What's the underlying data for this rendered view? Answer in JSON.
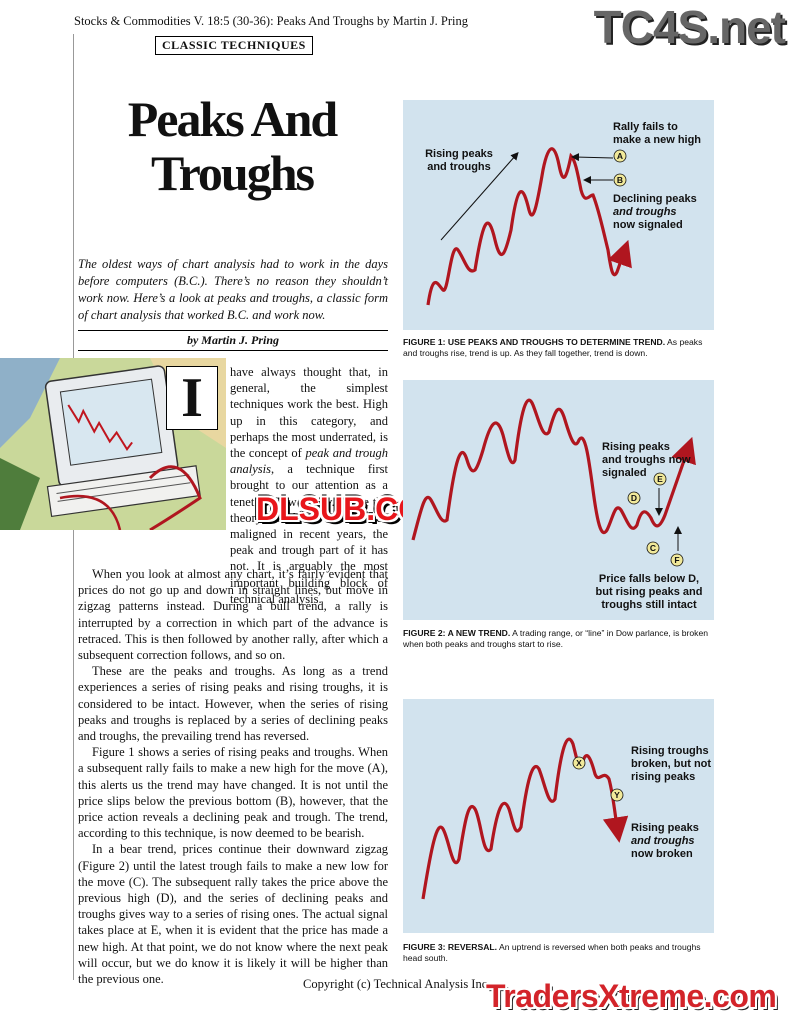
{
  "header": {
    "running_head": "Stocks & Commodities V. 18:5 (30-36): Peaks And Troughs by Martin J. Pring",
    "section": "CLASSIC TECHNIQUES"
  },
  "watermarks": {
    "top": "TC4S.net",
    "middle": "DLSUB.COM",
    "bottom": "TradersXtreme.com"
  },
  "article": {
    "title_line1": "Peaks And",
    "title_line2": "Troughs",
    "deck": "The oldest ways of chart analysis had to work in the days before computers (B.C.). There’s no reason they shouldn’t work now. Here’s a look at peaks and troughs, a classic form of chart analysis that worked B.C. and work now.",
    "byline": "by Martin J. Pring",
    "drop_cap": "I",
    "p1_lead": "have always thought that, in general, the simplest techniques work the best. High up in this category, and perhaps the most underrated, is the concept of ",
    "p1_em1": "peak and trough analysis",
    "p1_mid": ", a technique first brought to our attention as a tenet of Dow theory. While the theory itself has been much maligned in recent years, the peak and trough part of it has not. It is arguably the most important building block of technical analysis.",
    "p2": "When you look at almost any chart, it’s fairly evident that prices do not go up and down in straight lines, but move in zigzag patterns instead. During a bull trend, a rally is interrupted by a correction in which part of the advance is retraced. This is then followed by another rally, after which a subsequent correction follows, and so on.",
    "p3": "These are the peaks and troughs. As long as a trend experiences a series of rising peaks and rising troughs, it is considered to be intact. However, when the series of rising peaks and troughs is replaced by a series of declining peaks and troughs, the prevailing trend has reversed.",
    "p4": "Figure 1 shows a series of rising peaks and troughs. When a subsequent rally fails to make a new high for the move (A), this alerts us the trend may have changed. It is not until the price slips below the previous bottom (B), however, that the price action reveals a declining peak and trough. The trend, according to this technique, is now deemed to be bearish.",
    "p5": "In a bear trend, prices continue their downward zigzag (Figure 2) until the latest trough fails to make a new low for the move (C). The subsequent rally takes the price above the previous high (D), and the series of declining peaks and troughs gives way to a series of rising ones. The actual signal takes place at E, when it is evident that the price has made a new high. At that point, we do not know where the next peak will occur, but we do know it is likely it will be higher than the previous one."
  },
  "figures": {
    "fig1": {
      "label_rising_1": "Rising peaks",
      "label_rising_2": "and troughs",
      "label_fail_1": "Rally fails to",
      "label_fail_2": "make a new high",
      "label_decl_1": "Declining peaks",
      "label_decl_2": "and troughs",
      "label_decl_3": "now signaled",
      "marker_a": "A",
      "marker_b": "B",
      "caption_bold": "FIGURE 1: USE PEAKS AND TROUGHS TO DETERMINE TREND.",
      "caption_text": " As peaks and troughs rise, trend is up. As they fall together, trend is down."
    },
    "fig2": {
      "label_rise_1": "Rising peaks",
      "label_rise_2": "and troughs now",
      "label_rise_3": "signaled",
      "label_below_1": "Price falls below D,",
      "label_below_2": "but rising peaks and",
      "label_below_3": "troughs still intact",
      "marker_c": "C",
      "marker_d": "D",
      "marker_e": "E",
      "marker_f": "F",
      "caption_bold": "FIGURE 2: A NEW TREND.",
      "caption_text": " A trading range, or “line” in Dow parlance, is broken when both peaks and troughs start to rise."
    },
    "fig3": {
      "label_broken_1": "Rising troughs",
      "label_broken_2": "broken, but not",
      "label_broken_3": "rising peaks",
      "label_peaks_1": "Rising peaks",
      "label_peaks_2": "and troughs",
      "label_peaks_3": "now broken",
      "marker_x": "X",
      "marker_y": "Y",
      "caption_bold": "FIGURE 3: REVERSAL.",
      "caption_text": " An uptrend is reversed when both peaks and troughs head south."
    },
    "colors": {
      "panel": "#d2e3ee",
      "line": "#b0161f",
      "marker": "#f1e99a"
    }
  },
  "footer": {
    "copyright": "Copyright (c) Technical Analysis Inc."
  }
}
